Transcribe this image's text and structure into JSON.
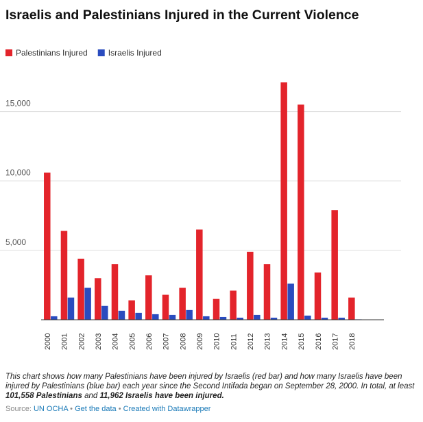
{
  "chart_data": {
    "type": "grouped-bar",
    "title": "Israelis and Palestinians Injured in the Current Violence",
    "categories": [
      "2000",
      "2001",
      "2002",
      "2003",
      "2004",
      "2005",
      "2006",
      "2007",
      "2008",
      "2009",
      "2010",
      "2011",
      "2012",
      "2013",
      "2014",
      "2015",
      "2016",
      "2017",
      "2018"
    ],
    "series": [
      {
        "name": "Palestinians Injured",
        "color": "#e3242b",
        "values": [
          10600,
          6400,
          4400,
          3000,
          4000,
          1400,
          3200,
          1800,
          2300,
          6500,
          1500,
          2100,
          4900,
          4000,
          17100,
          15500,
          3400,
          7900,
          1600
        ]
      },
      {
        "name": "Israelis Injured",
        "color": "#2a4cbf",
        "values": [
          250,
          1600,
          2300,
          1000,
          650,
          500,
          400,
          350,
          700,
          250,
          200,
          150,
          350,
          150,
          2600,
          300,
          150,
          150,
          30
        ]
      }
    ],
    "ylim": [
      0,
      17500
    ],
    "yticks": [
      {
        "value": 5000,
        "label": "5,000"
      },
      {
        "value": 10000,
        "label": "10,000"
      },
      {
        "value": 15000,
        "label": "15,000"
      }
    ],
    "grid": true,
    "legend": "top-left",
    "description_parts": [
      "This chart shows how many Palestinians have been injured by Israelis (red bar) and how many Israelis have been injured by Palestinians (blue bar) each year since the Second Intifada began on September 28, 2000. In total, at least ",
      "101,558 Palestinians",
      " and ",
      "11,962 Israelis have been injured."
    ],
    "source_label": "Source:",
    "source": "UN OCHA",
    "separator": "•",
    "links": [
      "Get the data",
      "Created with Datawrapper"
    ]
  }
}
